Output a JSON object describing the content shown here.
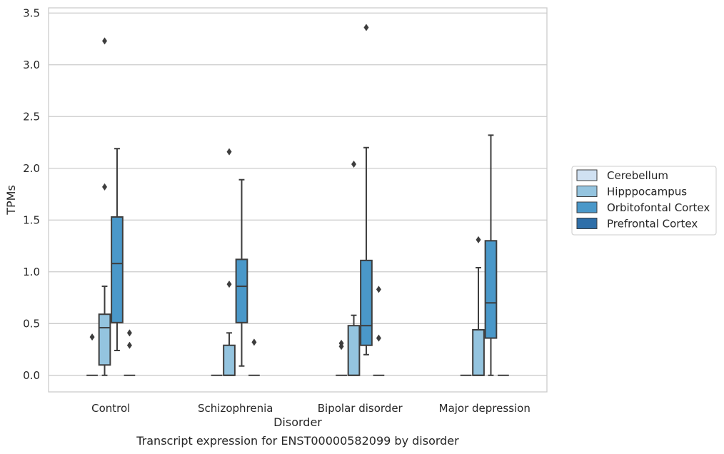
{
  "chart_data": {
    "type": "box",
    "title": "",
    "caption": "Transcript expression for ENST00000582099 by disorder",
    "xlabel": "Disorder",
    "ylabel": "TPMs",
    "ylim": [
      -0.16,
      3.55
    ],
    "yticks": [
      "0.0",
      "0.5",
      "1.0",
      "1.5",
      "2.0",
      "2.5",
      "3.0",
      "3.5"
    ],
    "ytick_values": [
      0,
      0.5,
      1.0,
      1.5,
      2.0,
      2.5,
      3.0,
      3.5
    ],
    "categories": [
      "Control",
      "Schizophrenia",
      "Bipolar disorder",
      "Major depression"
    ],
    "grid": "horizontal",
    "legend_position": "right",
    "series": [
      {
        "name": "Cerebellum",
        "color": "#d0e1f2",
        "boxes": [
          {
            "q1": 0,
            "median": 0,
            "q3": 0,
            "whisker_low": 0,
            "whisker_high": 0,
            "outliers": [
              0.37
            ]
          },
          {
            "q1": 0,
            "median": 0,
            "q3": 0,
            "whisker_low": 0,
            "whisker_high": 0,
            "outliers": []
          },
          {
            "q1": 0,
            "median": 0,
            "q3": 0,
            "whisker_low": 0,
            "whisker_high": 0,
            "outliers": [
              0.28,
              0.31
            ]
          },
          {
            "q1": 0,
            "median": 0,
            "q3": 0,
            "whisker_low": 0,
            "whisker_high": 0,
            "outliers": []
          }
        ]
      },
      {
        "name": "Hipppocampus",
        "color": "#94c4df",
        "boxes": [
          {
            "q1": 0.1,
            "median": 0.46,
            "q3": 0.59,
            "whisker_low": 0,
            "whisker_high": 0.86,
            "outliers": [
              1.82,
              3.23
            ]
          },
          {
            "q1": 0,
            "median": 0,
            "q3": 0.29,
            "whisker_low": 0,
            "whisker_high": 0.41,
            "outliers": [
              0.88,
              2.16
            ]
          },
          {
            "q1": 0,
            "median": 0,
            "q3": 0.48,
            "whisker_low": 0,
            "whisker_high": 0.58,
            "outliers": [
              2.04
            ]
          },
          {
            "q1": 0,
            "median": 0,
            "q3": 0.44,
            "whisker_low": 0,
            "whisker_high": 1.04,
            "outliers": [
              1.31
            ]
          }
        ]
      },
      {
        "name": "Orbitofontal Cortex",
        "color": "#4a98c9",
        "boxes": [
          {
            "q1": 0.51,
            "median": 1.08,
            "q3": 1.53,
            "whisker_low": 0.24,
            "whisker_high": 2.19,
            "outliers": []
          },
          {
            "q1": 0.51,
            "median": 0.86,
            "q3": 1.12,
            "whisker_low": 0.09,
            "whisker_high": 1.89,
            "outliers": []
          },
          {
            "q1": 0.29,
            "median": 0.48,
            "q3": 1.11,
            "whisker_low": 0.2,
            "whisker_high": 2.2,
            "outliers": [
              3.36
            ]
          },
          {
            "q1": 0.36,
            "median": 0.7,
            "q3": 1.3,
            "whisker_low": 0,
            "whisker_high": 2.32,
            "outliers": []
          }
        ]
      },
      {
        "name": "Prefrontal Cortex",
        "color": "#2e6fa9",
        "boxes": [
          {
            "q1": 0,
            "median": 0,
            "q3": 0,
            "whisker_low": 0,
            "whisker_high": 0,
            "outliers": [
              0.29,
              0.41
            ]
          },
          {
            "q1": 0,
            "median": 0,
            "q3": 0,
            "whisker_low": 0,
            "whisker_high": 0,
            "outliers": [
              0.32
            ]
          },
          {
            "q1": 0,
            "median": 0,
            "q3": 0,
            "whisker_low": 0,
            "whisker_high": 0,
            "outliers": [
              0.36,
              0.83
            ]
          },
          {
            "q1": 0,
            "median": 0,
            "q3": 0,
            "whisker_low": 0,
            "whisker_high": 0,
            "outliers": []
          }
        ]
      }
    ]
  }
}
